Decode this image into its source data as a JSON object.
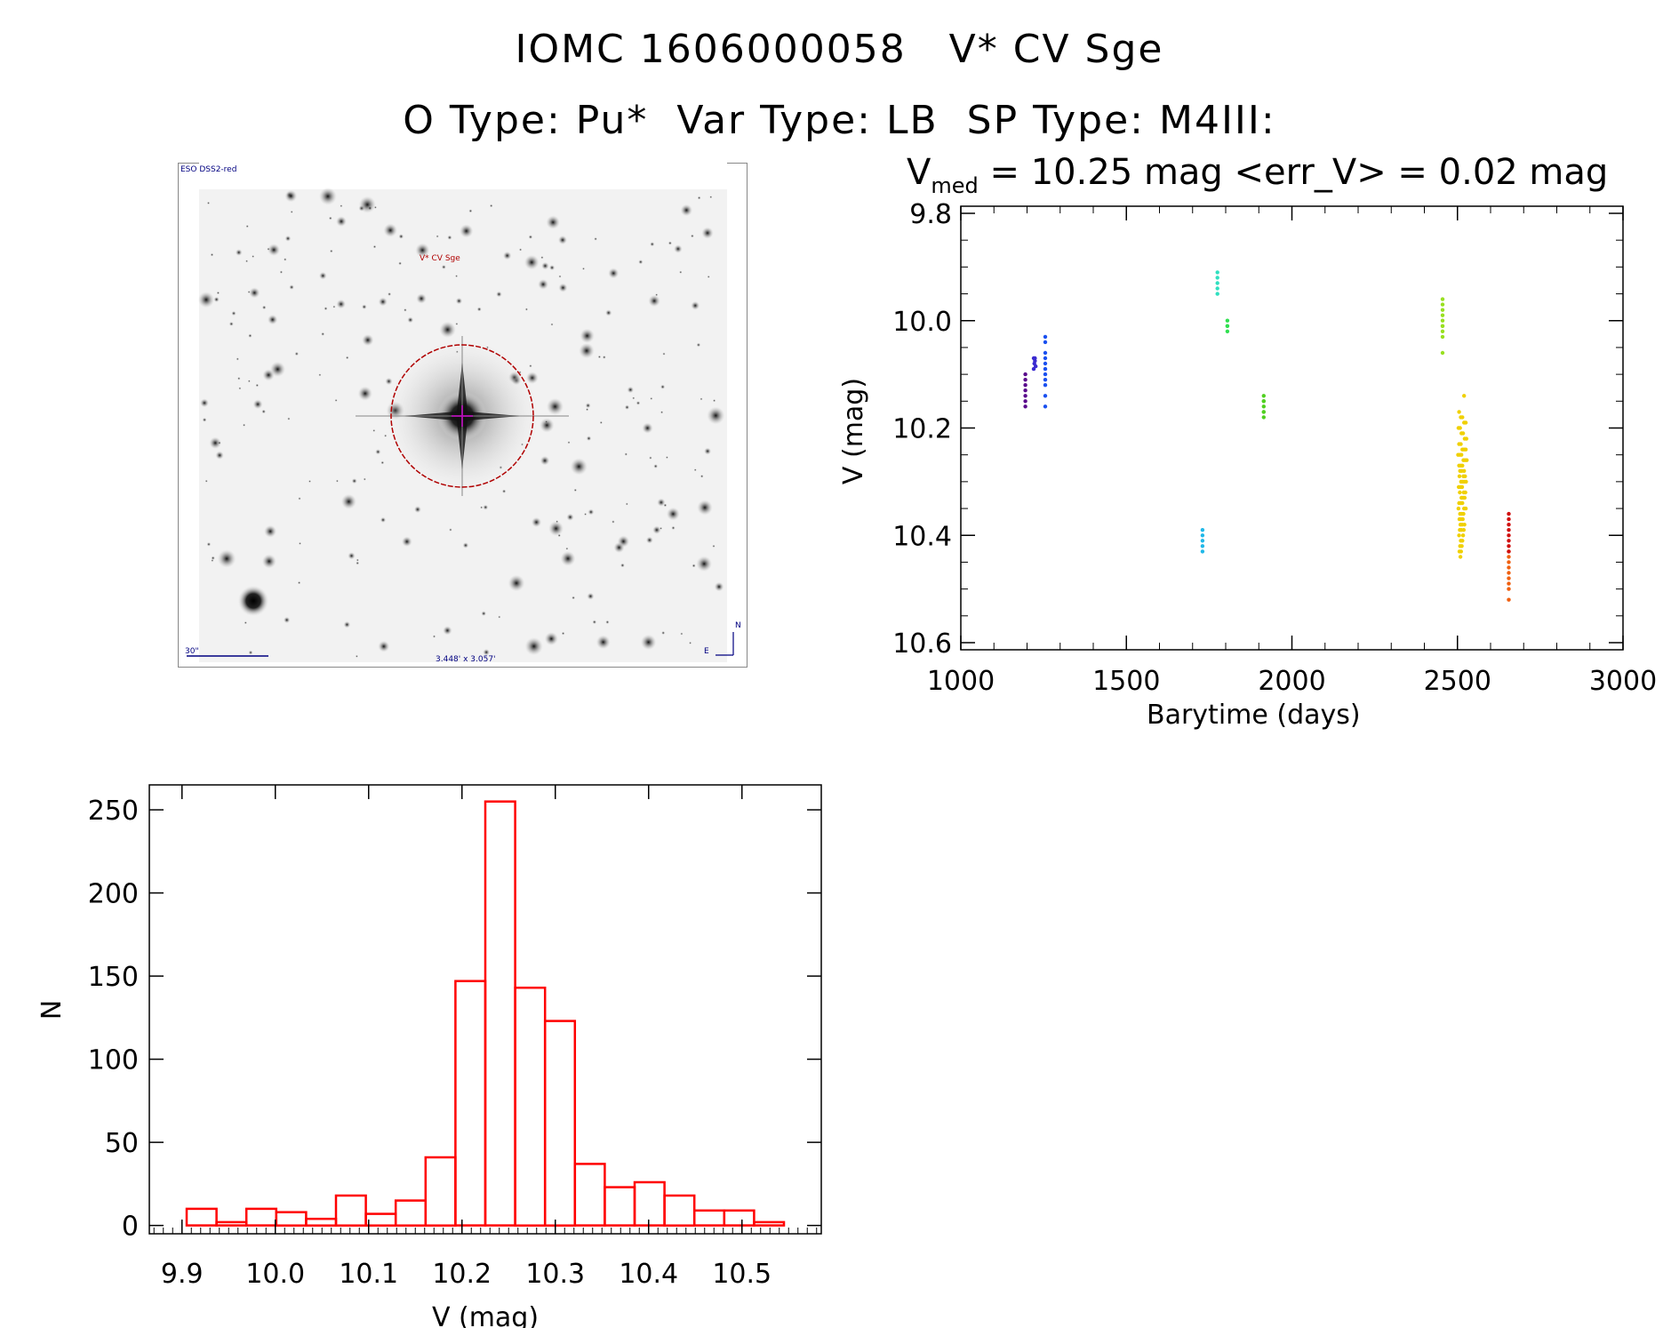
{
  "header": {
    "line1": "IOMC 1606000058   V* CV Sge",
    "line2": "O Type: Pu*  Var Type: LB  SP Type: M4III:"
  },
  "finder": {
    "survey_label": "ESO DSS2-red",
    "target_label": "V* CV Sge",
    "scale_label": "30\"",
    "fov_label": "3.448' x 3.057'",
    "north_label": "N",
    "east_label": "E"
  },
  "chart_data": [
    {
      "type": "scatter",
      "title_prefix": "V",
      "title_sub": "med",
      "title_rest": " = 10.25 mag <err_V> = 0.02 mag",
      "xlabel": "Barytime (days)",
      "ylabel": "V (mag)",
      "xlim": [
        1000,
        3000
      ],
      "ylim": [
        10.6,
        9.8
      ],
      "y_inverted": true,
      "xticks": [
        1000,
        1500,
        2000,
        2500,
        3000
      ],
      "xtick_labels": [
        "1000",
        "1500",
        "2000",
        "2500",
        "3000"
      ],
      "yticks": [
        9.8,
        10.0,
        10.2,
        10.4,
        10.6
      ],
      "ytick_labels": [
        "9.8",
        "10.0",
        "10.2",
        "10.4",
        "10.6"
      ],
      "series": [
        {
          "color": "#5a0a8c",
          "x": [
            1195,
            1195,
            1195,
            1195,
            1195,
            1195,
            1195
          ],
          "y": [
            10.1,
            10.11,
            10.12,
            10.13,
            10.14,
            10.15,
            10.16
          ]
        },
        {
          "color": "#3a2ad0",
          "x": [
            1220,
            1222,
            1224,
            1226,
            1220,
            1224
          ],
          "y": [
            10.07,
            10.08,
            10.075,
            10.085,
            10.09,
            10.07
          ]
        },
        {
          "color": "#1a50f0",
          "x": [
            1255,
            1255,
            1255,
            1255,
            1255,
            1255,
            1255,
            1255,
            1255,
            1255,
            1255
          ],
          "y": [
            10.03,
            10.04,
            10.06,
            10.07,
            10.08,
            10.09,
            10.1,
            10.11,
            10.12,
            10.14,
            10.16
          ]
        },
        {
          "color": "#20b8e8",
          "x": [
            1730,
            1730,
            1730,
            1730,
            1730
          ],
          "y": [
            10.39,
            10.4,
            10.41,
            10.42,
            10.43
          ]
        },
        {
          "color": "#30e0c0",
          "x": [
            1775,
            1775,
            1775,
            1775,
            1775
          ],
          "y": [
            9.91,
            9.92,
            9.93,
            9.94,
            9.95
          ]
        },
        {
          "color": "#30e050",
          "x": [
            1805,
            1805,
            1805,
            1805
          ],
          "y": [
            10.0,
            10.01,
            10.01,
            10.02
          ]
        },
        {
          "color": "#50d020",
          "x": [
            1915,
            1915,
            1915,
            1915,
            1915,
            1915,
            1915
          ],
          "y": [
            10.14,
            10.15,
            10.15,
            10.16,
            10.17,
            10.17,
            10.18
          ]
        },
        {
          "color": "#98e020",
          "x": [
            2455,
            2455,
            2455,
            2455,
            2455,
            2455,
            2455,
            2455,
            2455,
            2455
          ],
          "y": [
            9.96,
            9.97,
            9.98,
            9.99,
            10.0,
            10.01,
            10.01,
            10.02,
            10.03,
            10.06
          ]
        },
        {
          "color": "#f0d000",
          "x": [
            2520,
            2505,
            2510,
            2515,
            2520,
            2525,
            2503,
            2508,
            2512,
            2517,
            2522,
            2527,
            2505,
            2510,
            2515,
            2520,
            2525,
            2502,
            2507,
            2512,
            2518,
            2523,
            2528,
            2505,
            2510,
            2515,
            2520,
            2508,
            2513,
            2518,
            2523,
            2506,
            2511,
            2516,
            2521,
            2526,
            2504,
            2509,
            2514,
            2519,
            2524,
            2507,
            2512,
            2517,
            2522,
            2505,
            2510,
            2515,
            2520,
            2525,
            2503,
            2508,
            2513,
            2518,
            2506,
            2511,
            2516,
            2521,
            2509,
            2514,
            2519,
            2507,
            2512,
            2517,
            2505,
            2510,
            2515,
            2508,
            2513,
            2506,
            2511,
            2509
          ],
          "y": [
            10.14,
            10.17,
            10.18,
            10.18,
            10.19,
            10.19,
            10.2,
            10.2,
            10.21,
            10.21,
            10.22,
            10.22,
            10.23,
            10.23,
            10.24,
            10.24,
            10.24,
            10.25,
            10.25,
            10.25,
            10.26,
            10.26,
            10.26,
            10.27,
            10.27,
            10.27,
            10.28,
            10.28,
            10.28,
            10.29,
            10.29,
            10.29,
            10.3,
            10.3,
            10.3,
            10.3,
            10.31,
            10.31,
            10.31,
            10.32,
            10.32,
            10.32,
            10.33,
            10.33,
            10.33,
            10.34,
            10.34,
            10.34,
            10.35,
            10.35,
            10.35,
            10.36,
            10.36,
            10.36,
            10.37,
            10.37,
            10.37,
            10.38,
            10.38,
            10.38,
            10.39,
            10.39,
            10.39,
            10.4,
            10.4,
            10.41,
            10.41,
            10.42,
            10.42,
            10.43,
            10.43,
            10.44
          ]
        },
        {
          "color": "#f06010",
          "x": [
            2655,
            2655,
            2655,
            2655,
            2655,
            2655,
            2655,
            2655,
            2655
          ],
          "y": [
            10.43,
            10.44,
            10.45,
            10.46,
            10.47,
            10.48,
            10.49,
            10.5,
            10.52
          ]
        },
        {
          "color": "#d01010",
          "x": [
            2655,
            2655,
            2655,
            2655,
            2655,
            2655,
            2655,
            2655
          ],
          "y": [
            10.36,
            10.37,
            10.38,
            10.39,
            10.4,
            10.41,
            10.42,
            10.43
          ]
        }
      ]
    },
    {
      "type": "bar",
      "subtype": "histogram",
      "xlabel": "V (mag)",
      "ylabel": "N",
      "xlim": [
        9.865,
        10.585
      ],
      "ylim": [
        -5,
        265
      ],
      "xticks": [
        9.9,
        10.0,
        10.1,
        10.2,
        10.3,
        10.4,
        10.5
      ],
      "xtick_labels": [
        "9.9",
        "10.0",
        "10.1",
        "10.2",
        "10.3",
        "10.4",
        "10.5"
      ],
      "yticks": [
        0,
        50,
        100,
        150,
        200,
        250
      ],
      "ytick_labels": [
        "0",
        "50",
        "100",
        "150",
        "200",
        "250"
      ],
      "bar_color": "#ff0000",
      "bin_width": 0.032,
      "bin_starts": [
        9.905,
        9.937,
        9.969,
        10.001,
        10.033,
        10.065,
        10.097,
        10.129,
        10.161,
        10.193,
        10.225,
        10.257,
        10.289,
        10.321,
        10.353,
        10.385,
        10.417,
        10.449,
        10.481,
        10.513
      ],
      "values": [
        10,
        2,
        10,
        8,
        4,
        18,
        7,
        15,
        41,
        147,
        255,
        143,
        123,
        37,
        23,
        26,
        18,
        9,
        9,
        2
      ]
    }
  ]
}
